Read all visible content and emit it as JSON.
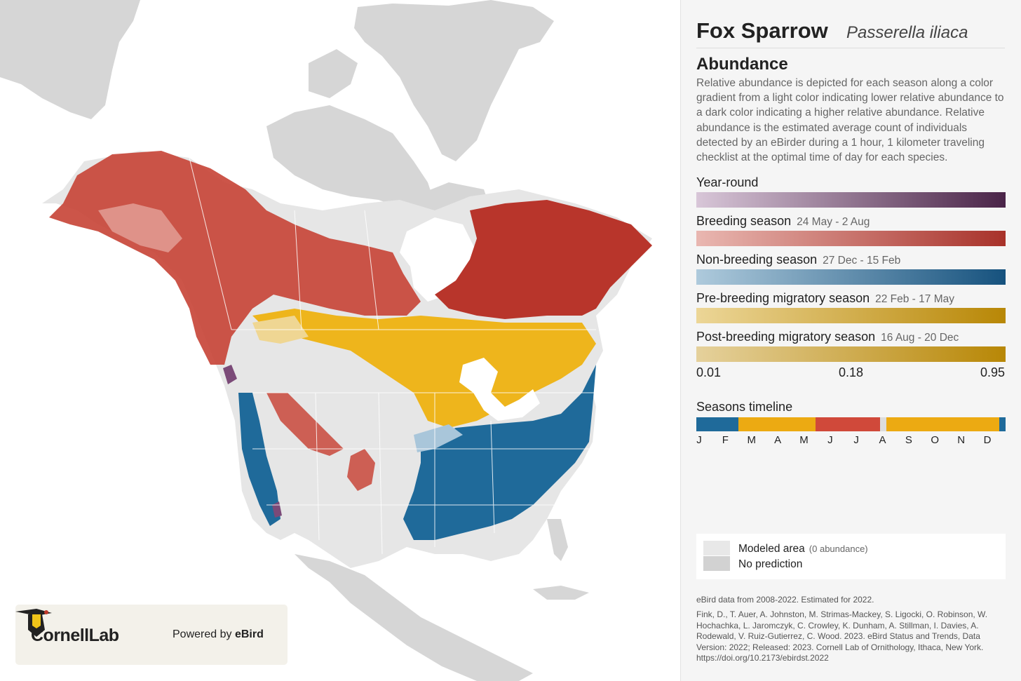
{
  "species": {
    "common_name": "Fox Sparrow",
    "scientific_name": "Passerella iliaca"
  },
  "abundance": {
    "heading": "Abundance",
    "description": "Relative abundance is depicted for each season along a color gradient from a light color indicating lower relative abundance to a dark color indicating a higher relative abundance. Relative abundance is the estimated average count of individuals detected by an eBirder during a 1 hour, 1 kilometer traveling checklist at the optimal time of day for each species."
  },
  "seasons": [
    {
      "label": "Year-round",
      "dates": "",
      "color_light": "#d8c6d8",
      "color_dark": "#4a2448"
    },
    {
      "label": "Breeding season",
      "dates": "24 May - 2 Aug",
      "color_light": "#e9b7b1",
      "color_dark": "#a8322a"
    },
    {
      "label": "Non-breeding season",
      "dates": "27 Dec - 15 Feb",
      "color_light": "#aecadc",
      "color_dark": "#16527e"
    },
    {
      "label": "Pre-breeding migratory season",
      "dates": "22 Feb - 17 May",
      "color_light": "#ecd697",
      "color_dark": "#b88706"
    },
    {
      "label": "Post-breeding migratory season",
      "dates": "16 Aug - 20 Dec",
      "color_light": "#e5d19c",
      "color_dark": "#b88706"
    }
  ],
  "scale_ticks": [
    "0.01",
    "0.18",
    "0.95"
  ],
  "timeline": {
    "label": "Seasons timeline",
    "months": [
      "J",
      "F",
      "M",
      "A",
      "M",
      "J",
      "J",
      "A",
      "S",
      "O",
      "N",
      "D"
    ],
    "segments": [
      {
        "season": "non-breeding",
        "color": "#1f6a9a",
        "share": 0.135
      },
      {
        "season": "pre-breeding",
        "color": "#ecaa12",
        "share": 0.25
      },
      {
        "season": "breeding",
        "color": "#d0493a",
        "share": 0.21
      },
      {
        "season": "gap",
        "color": "#dddddd",
        "share": 0.02
      },
      {
        "season": "post-breeding",
        "color": "#ecaa12",
        "share": 0.365
      },
      {
        "season": "non-breeding",
        "color": "#1f6a9a",
        "share": 0.02
      }
    ]
  },
  "legend": {
    "modeled_area": "Modeled area",
    "modeled_area_note": "(0 abundance)",
    "no_prediction": "No prediction",
    "modeled_color": "#e8e8e8",
    "no_prediction_color": "#d2d2d2"
  },
  "data_note": "eBird data from 2008-2022. Estimated for 2022.",
  "citation": "Fink, D., T. Auer, A. Johnston, M. Strimas-Mackey, S. Ligocki, O. Robinson, W. Hochachka, L. Jaromczyk, C. Crowley, K. Dunham, A. Stillman, I. Davies, A. Rodewald, V. Ruiz-Gutierrez, C. Wood. 2023. eBird Status and Trends, Data Version: 2022; Released: 2023. Cornell Lab of Ornithology, Ithaca, New York. https://doi.org/10.2173/ebirdst.2022",
  "branding": {
    "logo_text": "CornellLab",
    "powered_prefix": "Powered by",
    "powered_brand": "eBird"
  },
  "map_colors": {
    "land": "#d6d6d6",
    "modeled": "#e6e6e6",
    "breeding": "#c8463a",
    "breeding_light": "#e3a29a",
    "nonbreeding": "#1f6a9a",
    "nonbreeding_light": "#a9c6da",
    "migration": "#eeb51c",
    "migration_light": "#efd693",
    "yearround": "#7b4a78"
  }
}
